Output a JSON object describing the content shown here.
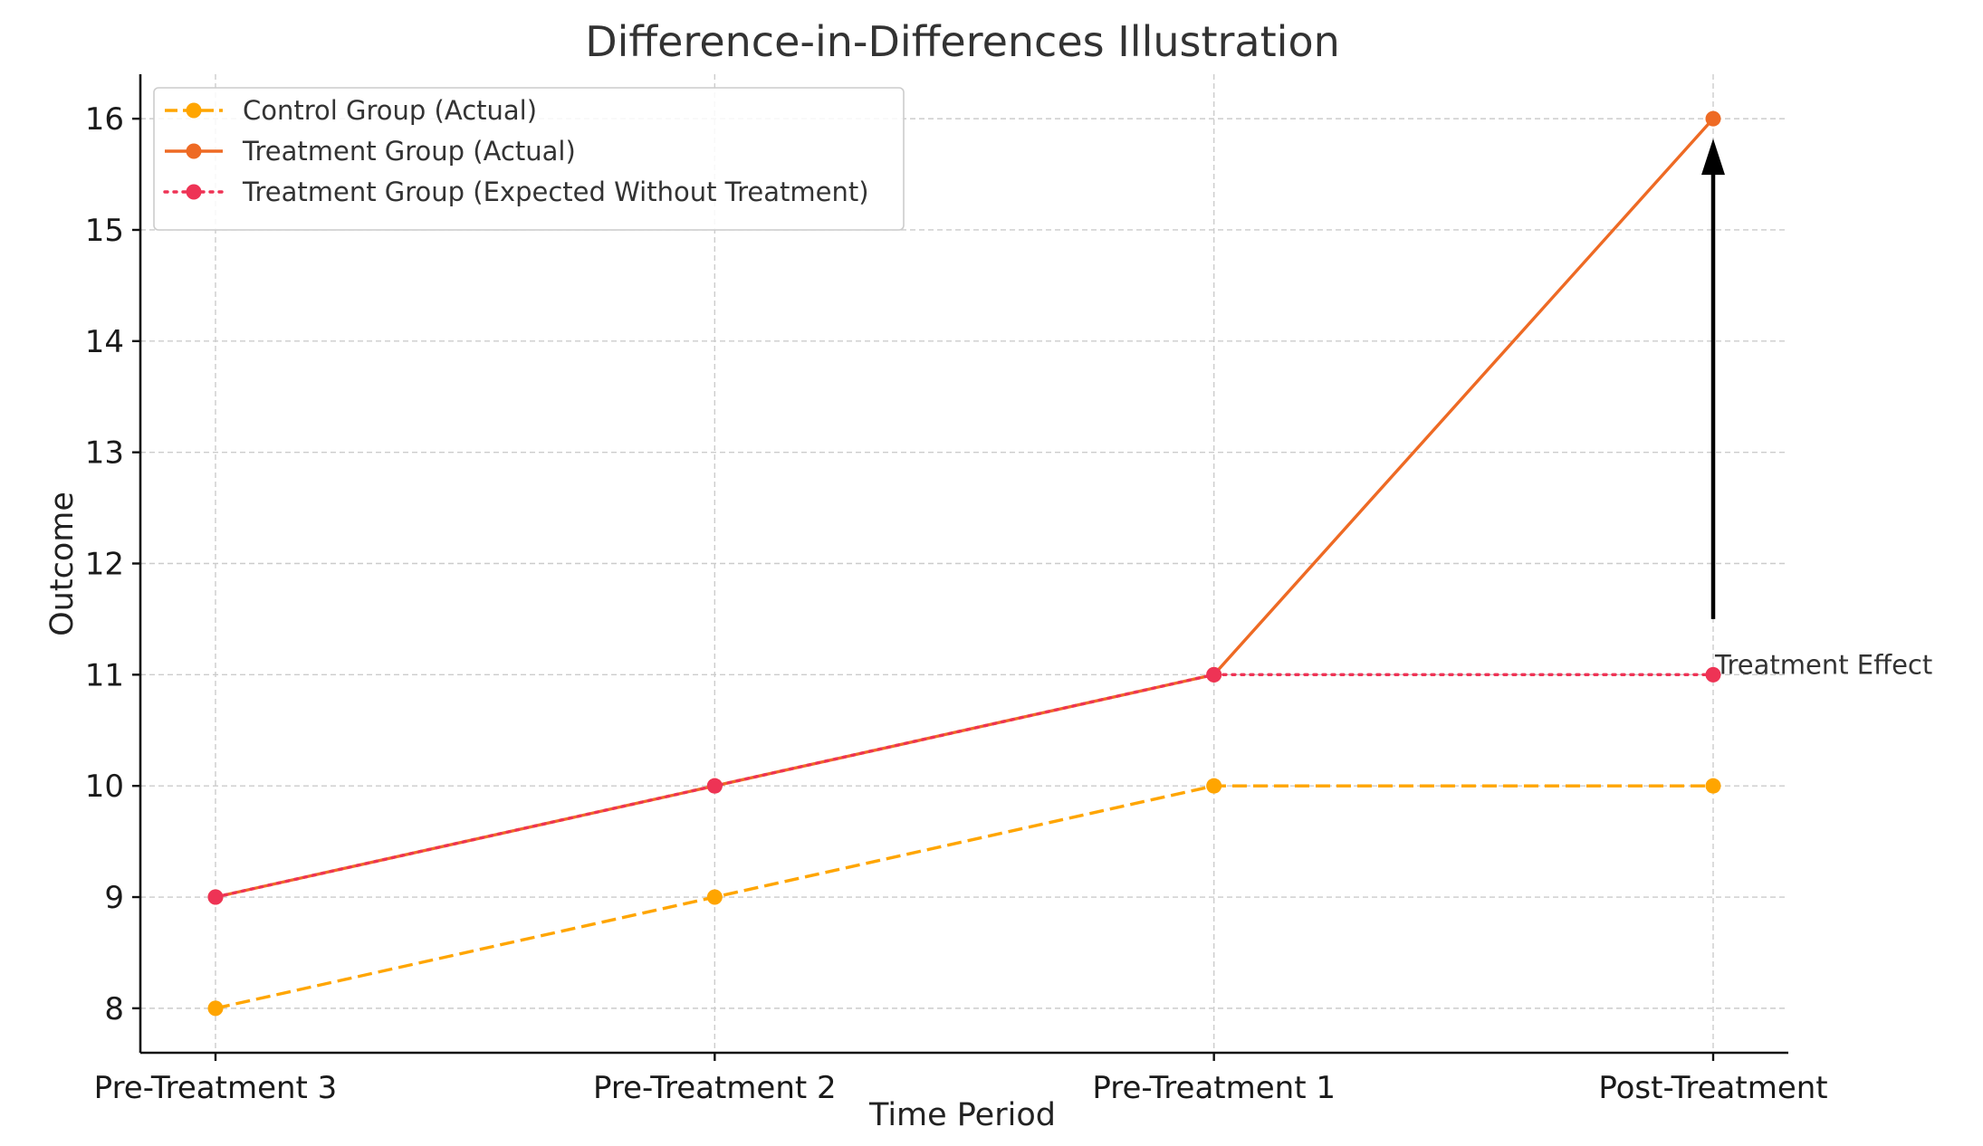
{
  "chart_data": {
    "type": "line",
    "title": "Difference-in-Differences Illustration",
    "xlabel": "Time Period",
    "ylabel": "Outcome",
    "categories": [
      "Pre-Treatment 3",
      "Pre-Treatment 2",
      "Pre-Treatment 1",
      "Post-Treatment"
    ],
    "ylim": [
      7.6,
      16.4
    ],
    "yticks": [
      8,
      9,
      10,
      11,
      12,
      13,
      14,
      15,
      16
    ],
    "grid": true,
    "legend_position": "top-left",
    "series": [
      {
        "name": "Control Group (Actual)",
        "values": [
          8,
          9,
          10,
          10
        ],
        "color": "#FFA500",
        "line_style": "dashed",
        "marker": "circle"
      },
      {
        "name": "Treatment Group (Actual)",
        "values": [
          9,
          10,
          11,
          16
        ],
        "color": "#EE6A24",
        "line_style": "solid",
        "marker": "circle"
      },
      {
        "name": "Treatment Group (Expected Without Treatment)",
        "values": [
          9,
          10,
          11,
          11
        ],
        "color": "#EE3355",
        "line_style": "dotted",
        "marker": "circle"
      }
    ],
    "annotations": [
      {
        "text": "Treatment Effect",
        "category": "Post-Treatment",
        "text_y": 11,
        "arrow_from_y": 11.5,
        "arrow_to_y": 16,
        "color": "#000000"
      }
    ]
  }
}
